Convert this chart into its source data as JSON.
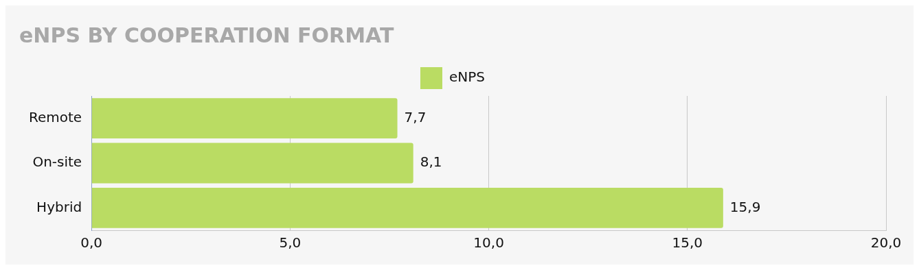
{
  "chart_data": {
    "type": "bar",
    "orientation": "horizontal",
    "title": "eNPS BY COOPERATION FORMAT",
    "categories": [
      "Remote",
      "On-site",
      "Hybrid"
    ],
    "series": [
      {
        "name": "eNPS",
        "color": "#badc63",
        "values": [
          7.7,
          8.1,
          15.9
        ],
        "value_labels": [
          "7,7",
          "8,1",
          "15,9"
        ]
      }
    ],
    "xlim": [
      0,
      20
    ],
    "xticks": [
      {
        "value": 0,
        "label": "0,0"
      },
      {
        "value": 5,
        "label": "5,0"
      },
      {
        "value": 10,
        "label": "10,0"
      },
      {
        "value": 15,
        "label": "15,0"
      },
      {
        "value": 20,
        "label": "20,0"
      }
    ],
    "grid": "x",
    "legend": "top"
  }
}
